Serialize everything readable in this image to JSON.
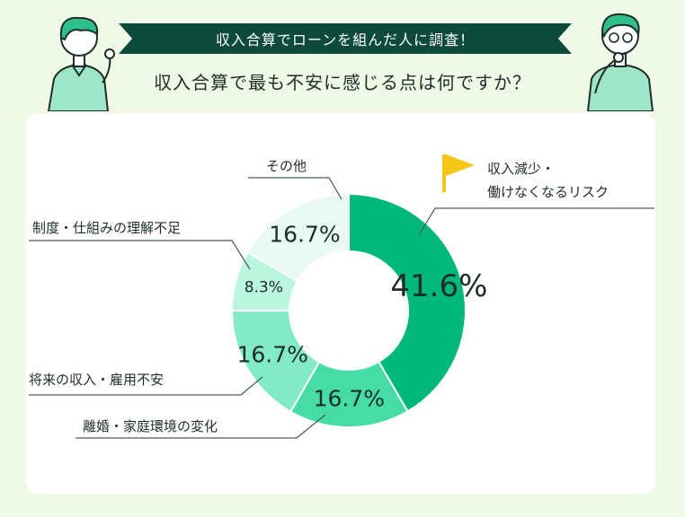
{
  "header": {
    "banner": "収入合算でローンを組んだ人に調査！",
    "question": "収入合算で最も不安に感じる点は何ですか？"
  },
  "colors": {
    "background": "#eefae6",
    "banner": "#0e4a3c",
    "flag": "#f5c518"
  },
  "chart_data": {
    "type": "pie",
    "donut": true,
    "slices": [
      {
        "category_lines": [
          "収入減少・",
          "働けなくなるリスク"
        ],
        "value": 41.6,
        "label": "41.6%",
        "color": "#00b87a"
      },
      {
        "category_lines": [
          "離婚・家庭環境の変化"
        ],
        "value": 16.7,
        "label": "16.7%",
        "color": "#45dca6"
      },
      {
        "category_lines": [
          "将来の収入・雇用不安"
        ],
        "value": 16.7,
        "label": "16.7%",
        "color": "#82ebc6"
      },
      {
        "category_lines": [
          "制度・仕組みの理解不足"
        ],
        "value": 8.3,
        "label": "8.3%",
        "color": "#baf5de"
      },
      {
        "category_lines": [
          "その他"
        ],
        "value": 16.7,
        "label": "16.7%",
        "color": "#e8f9f1"
      }
    ],
    "highlight": "flag-icon"
  }
}
